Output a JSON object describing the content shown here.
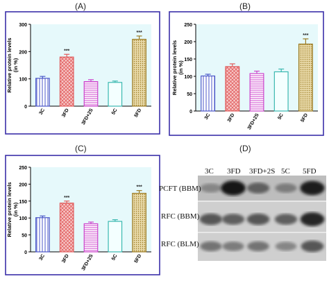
{
  "panels": {
    "a": "(A)",
    "b": "(B)",
    "c": "(C)",
    "d": "(D)"
  },
  "colors": {
    "plot_bg": "#e6f9fb",
    "frame": "#3a2fa8",
    "sig": "#222222"
  },
  "chart_data": [
    {
      "panel": "(A)",
      "type": "bar",
      "ylabel": "Relative protein levels (in %)",
      "ylim": [
        0,
        300
      ],
      "yticks": [
        0,
        100,
        200,
        300
      ],
      "categories": [
        "3C",
        "3FD",
        "3FD+2S",
        "5C",
        "5FD"
      ],
      "values": [
        102,
        180,
        90,
        87,
        245
      ],
      "errors": [
        7,
        10,
        7,
        5,
        12
      ],
      "annotations": [
        "",
        "***",
        "",
        "",
        "***"
      ],
      "bar_colors": [
        "#4b57c8",
        "#e05a5a",
        "#cc44cc",
        "#3ab8b0",
        "#9a7a22"
      ],
      "bar_fills": [
        "#ffffff",
        "#f5b8b8",
        "#f0c8f0",
        "#ffffff",
        "#e8d9a8"
      ],
      "grid": false
    },
    {
      "panel": "(B)",
      "type": "bar",
      "ylabel": "Relative protein levels (in %)",
      "ylim": [
        0,
        250
      ],
      "yticks": [
        0,
        50,
        100,
        150,
        200,
        250
      ],
      "categories": [
        "3C",
        "3FD",
        "3FD+2S",
        "5C",
        "5FD"
      ],
      "values": [
        101,
        128,
        108,
        113,
        193
      ],
      "errors": [
        5,
        8,
        7,
        8,
        15
      ],
      "annotations": [
        "",
        "",
        "",
        "",
        "***"
      ],
      "bar_colors": [
        "#4b57c8",
        "#e05a5a",
        "#cc44cc",
        "#3ab8b0",
        "#9a7a22"
      ],
      "bar_fills": [
        "#ffffff",
        "#f5b8b8",
        "#f0c8f0",
        "#ffffff",
        "#e8d9a8"
      ],
      "grid": false
    },
    {
      "panel": "(C)",
      "type": "bar",
      "ylabel": "Relative protein levels (in %)",
      "ylim": [
        0,
        250
      ],
      "yticks": [
        0,
        50,
        100,
        150,
        200,
        250
      ],
      "categories": [
        "3C",
        "3FD",
        "3FD+2S",
        "5C",
        "5FD"
      ],
      "values": [
        101,
        144,
        83,
        90,
        173
      ],
      "errors": [
        5,
        6,
        5,
        5,
        8
      ],
      "annotations": [
        "",
        "***",
        "",
        "",
        "***"
      ],
      "bar_colors": [
        "#4b57c8",
        "#e05a5a",
        "#cc44cc",
        "#3ab8b0",
        "#9a7a22"
      ],
      "bar_fills": [
        "#ffffff",
        "#f5b8b8",
        "#f0c8f0",
        "#ffffff",
        "#e8d9a8"
      ],
      "grid": false
    }
  ],
  "western_blot": {
    "lanes": [
      "3C",
      "3FD",
      "3FD+2S",
      "5C",
      "5FD"
    ],
    "rows": [
      "PCFT (BBM)",
      "RFC (BBM)",
      "RFC (BLM)"
    ],
    "band_intensity": [
      [
        0.35,
        0.95,
        0.55,
        0.4,
        0.9
      ],
      [
        0.6,
        0.55,
        0.6,
        0.55,
        0.85
      ],
      [
        0.45,
        0.4,
        0.45,
        0.35,
        0.6
      ]
    ]
  }
}
